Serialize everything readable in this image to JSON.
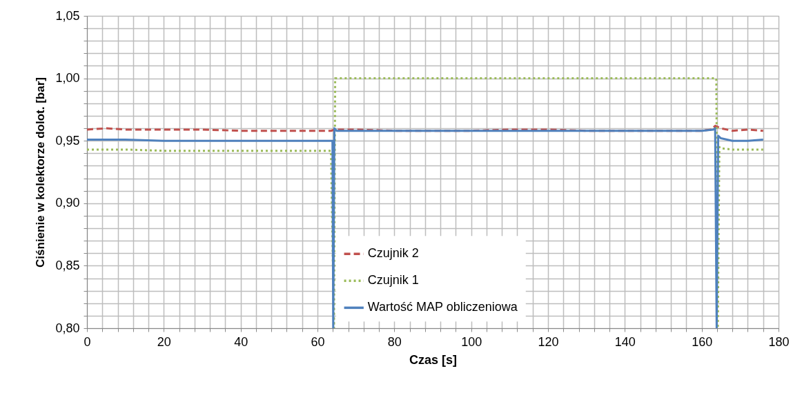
{
  "chart_data": {
    "type": "line",
    "xlabel": "Czas [s]",
    "ylabel": "Ciśnienie w kolektorze dolot. [bar]",
    "xlim": [
      0,
      180
    ],
    "xticks": [
      0,
      {
        "value": 4,
        "label": null
      },
      {
        "value": 8,
        "label": null
      },
      {
        "value": 12,
        "label": null
      },
      {
        "value": 16,
        "label": null
      },
      20,
      {
        "value": 24,
        "label": null
      },
      {
        "value": 28,
        "label": null
      },
      {
        "value": 32,
        "label": null
      },
      {
        "value": 36,
        "label": null
      },
      40,
      {
        "value": 44,
        "label": null
      },
      {
        "value": 48,
        "label": null
      },
      {
        "value": 52,
        "label": null
      },
      {
        "value": 56,
        "label": null
      },
      60,
      {
        "value": 64,
        "label": null
      },
      {
        "value": 68,
        "label": null
      },
      {
        "value": 72,
        "label": null
      },
      {
        "value": 76,
        "label": null
      },
      80,
      {
        "value": 84,
        "label": null
      },
      {
        "value": 88,
        "label": null
      },
      {
        "value": 92,
        "label": null
      },
      {
        "value": 96,
        "label": null
      },
      100,
      {
        "value": 104,
        "label": null
      },
      {
        "value": 108,
        "label": null
      },
      {
        "value": 112,
        "label": null
      },
      {
        "value": 116,
        "label": null
      },
      120,
      {
        "value": 124,
        "label": null
      },
      {
        "value": 128,
        "label": null
      },
      {
        "value": 132,
        "label": null
      },
      {
        "value": 136,
        "label": null
      },
      140,
      {
        "value": 144,
        "label": null
      },
      {
        "value": 148,
        "label": null
      },
      {
        "value": 152,
        "label": null
      },
      {
        "value": 156,
        "label": null
      },
      160,
      {
        "value": 164,
        "label": null
      },
      {
        "value": 168,
        "label": null
      },
      {
        "value": 172,
        "label": null
      },
      {
        "value": 176,
        "label": null
      },
      180
    ],
    "ylim": [
      0.8,
      1.05
    ],
    "yticks": [
      {
        "value": 0.8,
        "label": "0,80"
      },
      {
        "value": 0.81,
        "label": null
      },
      {
        "value": 0.82,
        "label": null
      },
      {
        "value": 0.83,
        "label": null
      },
      {
        "value": 0.84,
        "label": null
      },
      {
        "value": 0.85,
        "label": "0,85"
      },
      {
        "value": 0.86,
        "label": null
      },
      {
        "value": 0.87,
        "label": null
      },
      {
        "value": 0.88,
        "label": null
      },
      {
        "value": 0.89,
        "label": null
      },
      {
        "value": 0.9,
        "label": "0,90"
      },
      {
        "value": 0.91,
        "label": null
      },
      {
        "value": 0.92,
        "label": null
      },
      {
        "value": 0.93,
        "label": null
      },
      {
        "value": 0.94,
        "label": null
      },
      {
        "value": 0.95,
        "label": "0,95"
      },
      {
        "value": 0.96,
        "label": null
      },
      {
        "value": 0.97,
        "label": null
      },
      {
        "value": 0.98,
        "label": null
      },
      {
        "value": 0.99,
        "label": null
      },
      {
        "value": 1.0,
        "label": "1,00"
      },
      {
        "value": 1.01,
        "label": null
      },
      {
        "value": 1.02,
        "label": null
      },
      {
        "value": 1.03,
        "label": null
      },
      {
        "value": 1.04,
        "label": null
      },
      {
        "value": 1.05,
        "label": "1,05"
      }
    ],
    "grid": true,
    "legend": "bottom",
    "series": [
      {
        "name": "Czujnik 2",
        "color": "#c0504d",
        "line_style": "dashed",
        "x": [
          0,
          5,
          10,
          20,
          30,
          40,
          50,
          60,
          63.5,
          64.5,
          70,
          80,
          90,
          100,
          110,
          120,
          130,
          140,
          150,
          160,
          162.5,
          163.5,
          165,
          168,
          172,
          176
        ],
        "values": [
          0.959,
          0.96,
          0.959,
          0.959,
          0.959,
          0.958,
          0.958,
          0.958,
          0.958,
          0.959,
          0.959,
          0.958,
          0.958,
          0.958,
          0.959,
          0.959,
          0.958,
          0.958,
          0.958,
          0.958,
          0.959,
          0.962,
          0.96,
          0.958,
          0.959,
          0.958
        ]
      },
      {
        "name": "Czujnik 1",
        "color": "#9bbb59",
        "line_style": "dotted",
        "x": [
          0,
          5,
          10,
          20,
          30,
          40,
          50,
          60,
          63.5,
          64.3,
          64.6,
          70,
          100,
          130,
          160,
          163.8,
          164.2,
          164.6,
          165,
          168,
          172,
          176
        ],
        "values": [
          0.943,
          0.943,
          0.943,
          0.942,
          0.942,
          0.942,
          0.942,
          0.942,
          0.942,
          0.8,
          1.0,
          1.0,
          1.0,
          1.0,
          1.0,
          1.0,
          0.8,
          0.945,
          0.944,
          0.943,
          0.943,
          0.943
        ]
      },
      {
        "name": "Wartość MAP obliczeniowa",
        "color": "#4f81bd",
        "line_style": "solid",
        "x": [
          0,
          5,
          10,
          20,
          30,
          40,
          50,
          60,
          63.9,
          64.1,
          64.4,
          65,
          70,
          80,
          90,
          100,
          110,
          120,
          130,
          140,
          150,
          160,
          163,
          163.5,
          163.9,
          164.3,
          165,
          168,
          172,
          176
        ],
        "values": [
          0.951,
          0.951,
          0.951,
          0.95,
          0.95,
          0.95,
          0.95,
          0.95,
          0.95,
          0.8,
          0.96,
          0.958,
          0.958,
          0.958,
          0.958,
          0.958,
          0.958,
          0.958,
          0.958,
          0.958,
          0.958,
          0.958,
          0.959,
          0.96,
          0.8,
          0.954,
          0.952,
          0.95,
          0.95,
          0.951
        ]
      }
    ]
  }
}
